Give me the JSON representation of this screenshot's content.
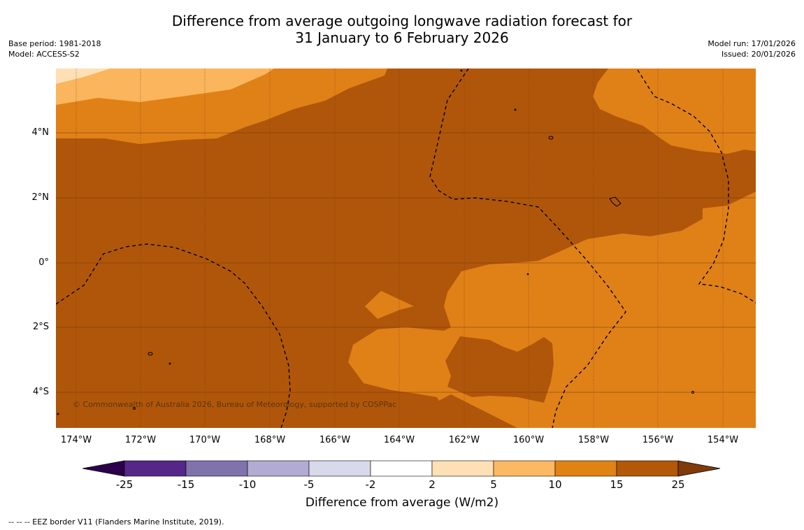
{
  "title": {
    "line1": "Difference from average outgoing longwave radiation forecast for",
    "line2": "31 January to 6 February 2026"
  },
  "meta": {
    "base_period": "Base period: 1981-2018",
    "model": "Model: ACCESS-S2",
    "model_run": "Model run: 17/01/2026",
    "issued": "Issued: 20/01/2026"
  },
  "map": {
    "lat_labels": [
      "4°N",
      "2°N",
      "0°",
      "2°S",
      "4°S"
    ],
    "lon_labels": [
      "174°W",
      "172°W",
      "170°W",
      "168°W",
      "166°W",
      "164°W",
      "162°W",
      "160°W",
      "158°W",
      "156°W",
      "154°W"
    ],
    "copyright": "© Commonwealth of Australia 2026, Bureau of Meteorology, supported by COSPPac",
    "colors": {
      "c15_25": "#b0560a",
      "c10_15": "#e08118",
      "c5_10": "#fbb55c",
      "c2_5": "#fee0b6",
      "grid": "#6b3a0e"
    }
  },
  "colorbar": {
    "ticks": [
      "-25",
      "-15",
      "-10",
      "-5",
      "-2",
      "2",
      "5",
      "10",
      "15",
      "25"
    ],
    "colors": [
      "#2d004b",
      "#542788",
      "#8073ac",
      "#b2abd2",
      "#d8daeb",
      "#ffffff",
      "#fee0b6",
      "#fdb863",
      "#e08214",
      "#b35806",
      "#7f3b08"
    ],
    "label": "Difference from average (W/m2)"
  },
  "legend_note": "--  --  -- EEZ border V11 (Flanders Marine Institute, 2019)."
}
